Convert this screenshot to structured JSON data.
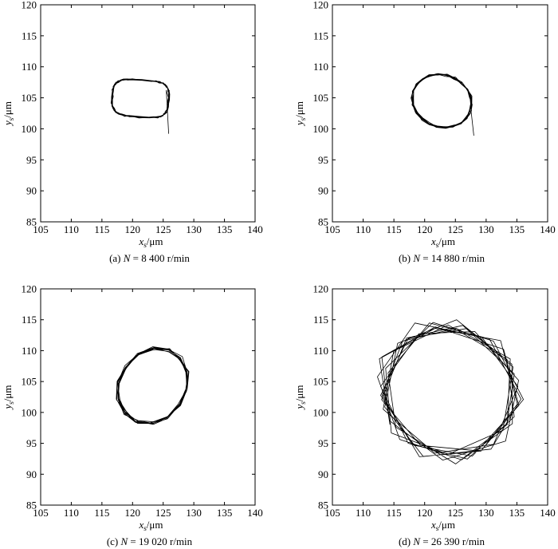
{
  "chart_data": [
    {
      "type": "line",
      "caption_prefix": "(a) ",
      "caption_var": "N",
      "caption_value": " = 8 400 r/min",
      "xlabel_var": "x",
      "xlabel_sub": "s",
      "xlabel_unit": "/μm",
      "ylabel_var": "y",
      "ylabel_sub": "s",
      "ylabel_unit": "/μm",
      "xlim": [
        105,
        140
      ],
      "ylim": [
        85,
        120
      ],
      "xticks": [
        "105",
        "110",
        "115",
        "120",
        "125",
        "130",
        "135",
        "140"
      ],
      "yticks": [
        "85",
        "90",
        "95",
        "100",
        "105",
        "110",
        "115",
        "120"
      ],
      "grid": false,
      "orbit": {
        "cx": 121.3,
        "cy": 104.9,
        "rx": 4.6,
        "ry": 3.0,
        "tilt_deg": -4,
        "turns": 7,
        "tail": [
          [
            125.5,
            106.2
          ],
          [
            125.9,
            99.2
          ]
        ]
      }
    },
    {
      "type": "line",
      "caption_prefix": "(b) ",
      "caption_var": "N",
      "caption_value": " = 14 880 r/min",
      "xlabel_var": "x",
      "xlabel_sub": "s",
      "xlabel_unit": "/μm",
      "ylabel_var": "y",
      "ylabel_sub": "s",
      "ylabel_unit": "/μm",
      "xlim": [
        105,
        140
      ],
      "ylim": [
        85,
        120
      ],
      "xticks": [
        "105",
        "110",
        "115",
        "120",
        "125",
        "130",
        "135",
        "140"
      ],
      "yticks": [
        "85",
        "90",
        "95",
        "100",
        "105",
        "110",
        "115",
        "120"
      ],
      "grid": false,
      "orbit": {
        "cx": 122.8,
        "cy": 104.5,
        "rx": 4.9,
        "ry": 4.2,
        "tilt_deg": -20,
        "turns": 8,
        "tail": [
          [
            127.6,
            102.5
          ],
          [
            128.0,
            98.9
          ]
        ]
      }
    },
    {
      "type": "line",
      "caption_prefix": "(c) ",
      "caption_var": "N",
      "caption_value": " = 19 020 r/min",
      "xlabel_var": "x",
      "xlabel_sub": "s",
      "xlabel_unit": "/μm",
      "ylabel_var": "y",
      "ylabel_sub": "s",
      "ylabel_unit": "/μm",
      "xlim": [
        105,
        140
      ],
      "ylim": [
        85,
        120
      ],
      "xticks": [
        "105",
        "110",
        "115",
        "120",
        "125",
        "130",
        "135",
        "140"
      ],
      "yticks": [
        "85",
        "90",
        "95",
        "100",
        "105",
        "110",
        "115",
        "120"
      ],
      "grid": false,
      "orbit": {
        "cx": 123.3,
        "cy": 104.3,
        "rx": 5.4,
        "ry": 6.4,
        "tilt_deg": -35,
        "turns": 9,
        "tail": []
      }
    },
    {
      "type": "line",
      "caption_prefix": "(d) ",
      "caption_var": "N",
      "caption_value": " = 26 390 r/min",
      "xlabel_var": "x",
      "xlabel_sub": "s",
      "xlabel_unit": "/μm",
      "ylabel_var": "y",
      "ylabel_sub": "s",
      "ylabel_unit": "/μm",
      "xlim": [
        105,
        140
      ],
      "ylim": [
        85,
        120
      ],
      "xticks": [
        "105",
        "110",
        "115",
        "120",
        "125",
        "130",
        "135",
        "140"
      ],
      "yticks": [
        "85",
        "90",
        "95",
        "100",
        "105",
        "110",
        "115",
        "120"
      ],
      "grid": false,
      "orbit": {
        "cx": 124.0,
        "cy": 103.4,
        "rx": 11.5,
        "ry": 10.8,
        "tilt_deg": -30,
        "turns": 10,
        "tail": []
      }
    }
  ]
}
